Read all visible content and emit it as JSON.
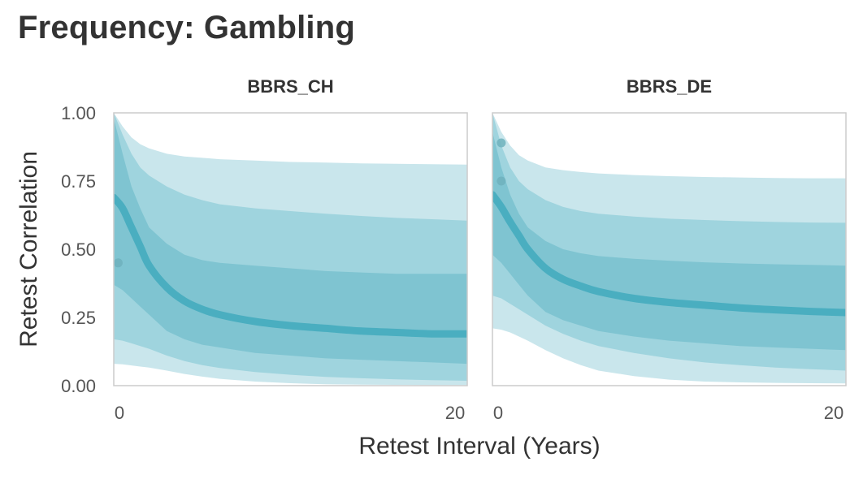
{
  "title": "Frequency: Gambling",
  "chart_data": {
    "type": "line",
    "title": "Frequency: Gambling",
    "xlabel": "Retest Interval (Years)",
    "ylabel": "Retest Correlation",
    "xlim": [
      0,
      20
    ],
    "ylim": [
      0,
      1
    ],
    "x_ticks": [
      "0",
      "20"
    ],
    "y_ticks": [
      "0.00",
      "0.25",
      "0.50",
      "0.75",
      "1.00"
    ],
    "grid": false,
    "colors": {
      "band_outer": "#c9e6ec",
      "band_middle": "#9fd4de",
      "band_inner": "#7fc4d1",
      "line": "#4aaec0",
      "point": "#6fb2bd",
      "frame": "#cccccc"
    },
    "x_grid": [
      0,
      0.5,
      1,
      1.5,
      2,
      3,
      4,
      5,
      6,
      8,
      10,
      12,
      14,
      16,
      18,
      20
    ],
    "panels": [
      {
        "name": "BBRS_CH",
        "median": [
          0.69,
          0.65,
          0.58,
          0.51,
          0.44,
          0.36,
          0.31,
          0.28,
          0.26,
          0.235,
          0.22,
          0.21,
          0.2,
          0.195,
          0.19,
          0.19
        ],
        "bands": [
          {
            "level": "outer",
            "lower": [
              0.08,
              0.078,
              0.074,
              0.07,
              0.066,
              0.055,
              0.043,
              0.033,
              0.025,
              0.015,
              0.009,
              0.005,
              0.004,
              0.003,
              0.002,
              0.002
            ],
            "upper": [
              1.0,
              0.95,
              0.91,
              0.885,
              0.87,
              0.85,
              0.84,
              0.835,
              0.83,
              0.825,
              0.82,
              0.818,
              0.815,
              0.813,
              0.812,
              0.81
            ]
          },
          {
            "level": "middle",
            "lower": [
              0.17,
              0.165,
              0.155,
              0.145,
              0.135,
              0.11,
              0.09,
              0.075,
              0.065,
              0.05,
              0.04,
              0.032,
              0.027,
              0.023,
              0.02,
              0.018
            ],
            "upper": [
              1.0,
              0.92,
              0.85,
              0.8,
              0.77,
              0.73,
              0.7,
              0.68,
              0.665,
              0.65,
              0.64,
              0.63,
              0.622,
              0.615,
              0.61,
              0.605
            ]
          },
          {
            "level": "inner",
            "lower": [
              0.37,
              0.35,
              0.32,
              0.29,
              0.26,
              0.2,
              0.17,
              0.15,
              0.14,
              0.12,
              0.11,
              0.1,
              0.095,
              0.09,
              0.085,
              0.08
            ],
            "upper": [
              0.98,
              0.85,
              0.73,
              0.65,
              0.58,
              0.52,
              0.48,
              0.46,
              0.45,
              0.44,
              0.43,
              0.42,
              0.415,
              0.41,
              0.41,
              0.41
            ]
          }
        ],
        "points": [
          {
            "x": 0.25,
            "y": 0.45
          }
        ]
      },
      {
        "name": "BBRS_DE",
        "median": [
          0.7,
          0.655,
          0.6,
          0.55,
          0.5,
          0.43,
          0.39,
          0.365,
          0.345,
          0.32,
          0.305,
          0.295,
          0.285,
          0.278,
          0.272,
          0.268
        ],
        "bands": [
          {
            "level": "outer",
            "lower": [
              0.21,
              0.205,
              0.195,
              0.18,
              0.165,
              0.13,
              0.1,
              0.075,
              0.055,
              0.035,
              0.022,
              0.015,
              0.012,
              0.01,
              0.009,
              0.008
            ],
            "upper": [
              1.0,
              0.93,
              0.88,
              0.845,
              0.825,
              0.8,
              0.79,
              0.783,
              0.778,
              0.772,
              0.768,
              0.765,
              0.763,
              0.761,
              0.76,
              0.76
            ]
          },
          {
            "level": "middle",
            "lower": [
              0.33,
              0.32,
              0.3,
              0.28,
              0.26,
              0.22,
              0.19,
              0.165,
              0.145,
              0.12,
              0.1,
              0.085,
              0.075,
              0.066,
              0.06,
              0.055
            ],
            "upper": [
              1.0,
              0.88,
              0.8,
              0.75,
              0.72,
              0.68,
              0.655,
              0.64,
              0.63,
              0.62,
              0.612,
              0.607,
              0.603,
              0.6,
              0.598,
              0.597
            ]
          },
          {
            "level": "inner",
            "lower": [
              0.48,
              0.45,
              0.41,
              0.37,
              0.33,
              0.27,
              0.24,
              0.22,
              0.2,
              0.18,
              0.165,
              0.155,
              0.145,
              0.14,
              0.135,
              0.13
            ],
            "upper": [
              0.93,
              0.8,
              0.7,
              0.63,
              0.58,
              0.53,
              0.5,
              0.485,
              0.475,
              0.465,
              0.458,
              0.452,
              0.448,
              0.445,
              0.443,
              0.44
            ]
          }
        ],
        "points": [
          {
            "x": 0.5,
            "y": 0.89
          },
          {
            "x": 0.5,
            "y": 0.75
          }
        ]
      }
    ]
  }
}
